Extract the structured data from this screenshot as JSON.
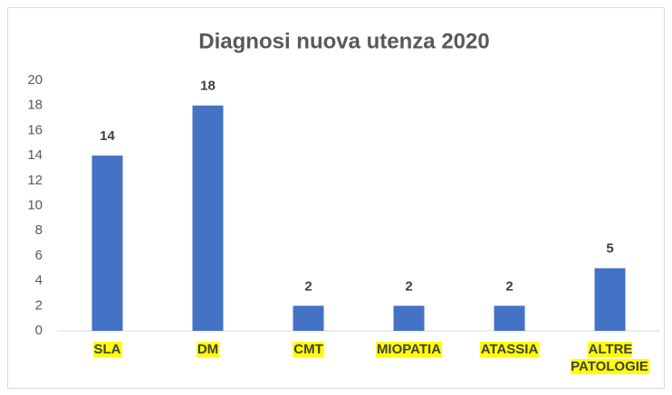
{
  "chart_data": {
    "type": "bar",
    "title": "Diagnosi nuova utenza 2020",
    "categories": [
      "SLA",
      "DM",
      "CMT",
      "MIOPATIA",
      "ATASSIA",
      "ALTRE PATOLOGIE"
    ],
    "values": [
      14,
      18,
      2,
      2,
      2,
      5
    ],
    "color": "#4472c4",
    "label_highlight": "#ffff00",
    "ylim": [
      0,
      20
    ],
    "yticks": [
      0,
      2,
      4,
      6,
      8,
      10,
      12,
      14,
      16,
      18,
      20
    ],
    "grid": false
  }
}
